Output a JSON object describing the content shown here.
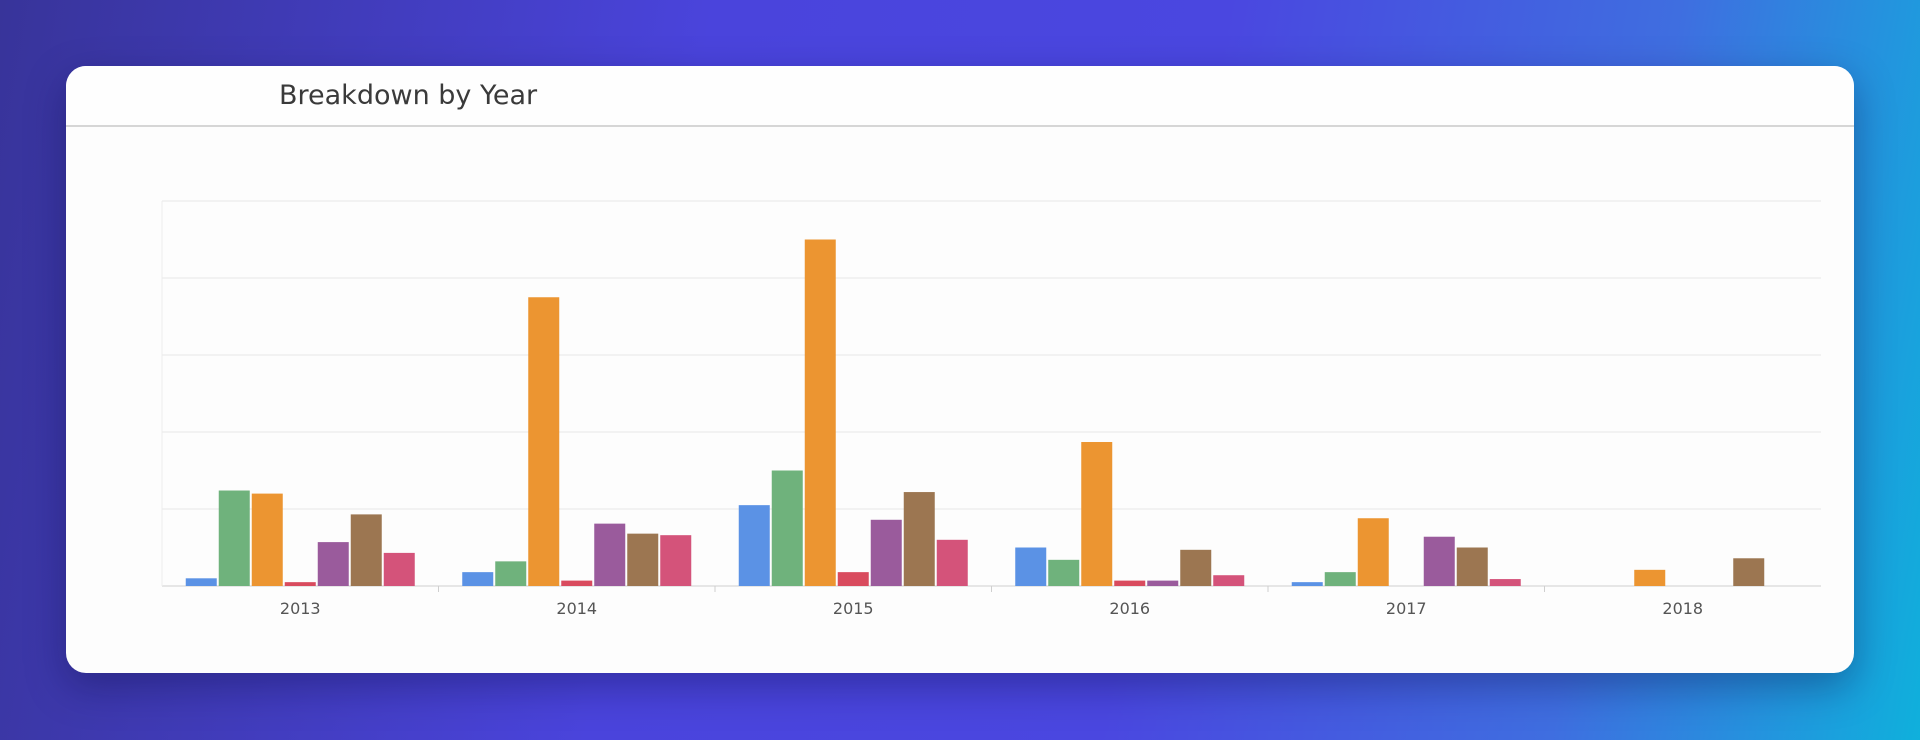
{
  "card": {
    "title": "Breakdown by Year"
  },
  "chart_data": {
    "type": "bar",
    "title": "Breakdown by Year",
    "categories": [
      "2013",
      "2014",
      "2015",
      "2016",
      "2017",
      "2018"
    ],
    "ylim": [
      0,
      50
    ],
    "grid": true,
    "legend": "none",
    "series": [
      {
        "color": "#5b92e5",
        "values": [
          1,
          1.8,
          10.5,
          5,
          0.5,
          0
        ]
      },
      {
        "color": "#6fb27c",
        "values": [
          12.4,
          3.2,
          15,
          3.4,
          1.8,
          0
        ]
      },
      {
        "color": "#ec9531",
        "values": [
          12,
          37.5,
          45,
          18.7,
          8.8,
          2.1
        ]
      },
      {
        "color": "#d94b5e",
        "values": [
          0.5,
          0.7,
          1.8,
          0.7,
          0,
          0
        ]
      },
      {
        "color": "#9a5b9c",
        "values": [
          5.7,
          8.1,
          8.6,
          0.7,
          6.4,
          0
        ]
      },
      {
        "color": "#9c7651",
        "values": [
          9.3,
          6.8,
          12.2,
          4.7,
          5,
          3.6
        ]
      },
      {
        "color": "#d4537a",
        "values": [
          4.3,
          6.6,
          6,
          1.4,
          0.9,
          0
        ]
      }
    ]
  }
}
